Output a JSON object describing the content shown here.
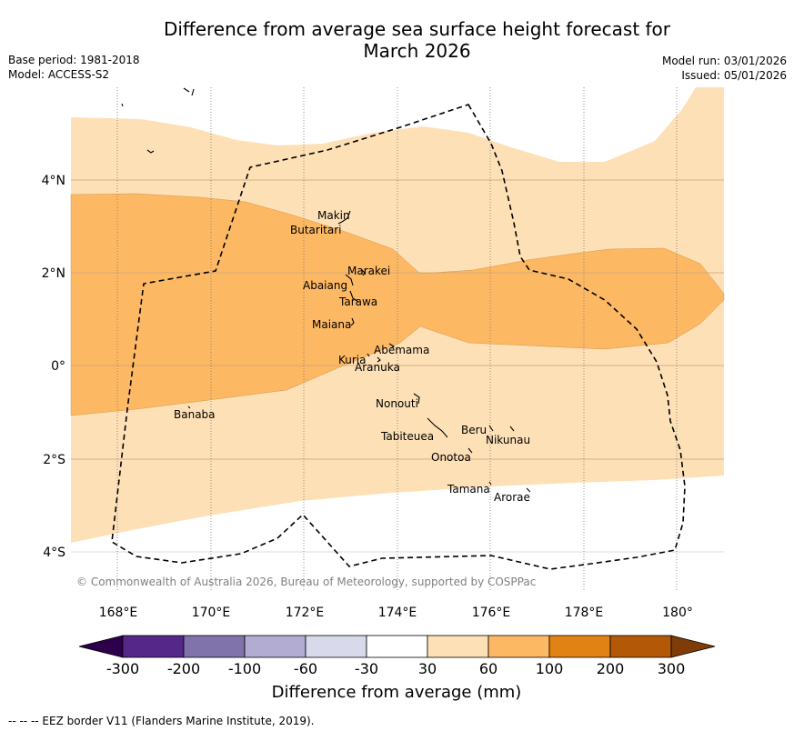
{
  "header": {
    "title_line1": "Difference from average sea surface height forecast for",
    "title_line2": "March 2026",
    "base_period": "Base period: 1981-2018",
    "model": "Model: ACCESS-S2",
    "model_run": "Model run: 03/01/2026",
    "issued": "Issued: 05/01/2026"
  },
  "map": {
    "lat_ticks": [
      "4°N",
      "2°N",
      "0°",
      "2°S",
      "4°S"
    ],
    "lon_ticks": [
      "168°E",
      "170°E",
      "172°E",
      "174°E",
      "176°E",
      "178°E",
      "180°"
    ],
    "places": [
      "Makin",
      "Butaritari",
      "Marakei",
      "Abaiang",
      "Tarawa",
      "Maiana",
      "Abemama",
      "Kuria",
      "Aranuka",
      "Banaba",
      "Nonouti",
      "Tabiteuea",
      "Beru",
      "Nikunau",
      "Onotoa",
      "Tamana",
      "Arorae"
    ],
    "credit": "© Commonwealth of Australia 2026, Bureau of Meteorology, supported by COSPPac"
  },
  "colorbar": {
    "labels": [
      "-300",
      "-200",
      "-100",
      "-60",
      "-30",
      "30",
      "60",
      "100",
      "200",
      "300"
    ],
    "colors": [
      "#2d004b",
      "#542788",
      "#8073ac",
      "#b2abd2",
      "#d8daeb",
      "#ffffff",
      "#fee0b6",
      "#fdb863",
      "#e08214",
      "#b35806",
      "#7f3b08"
    ],
    "title": "Difference from average (mm)"
  },
  "footnote": "--  --  -- EEZ border V11 (Flanders Marine Institute, 2019)."
}
